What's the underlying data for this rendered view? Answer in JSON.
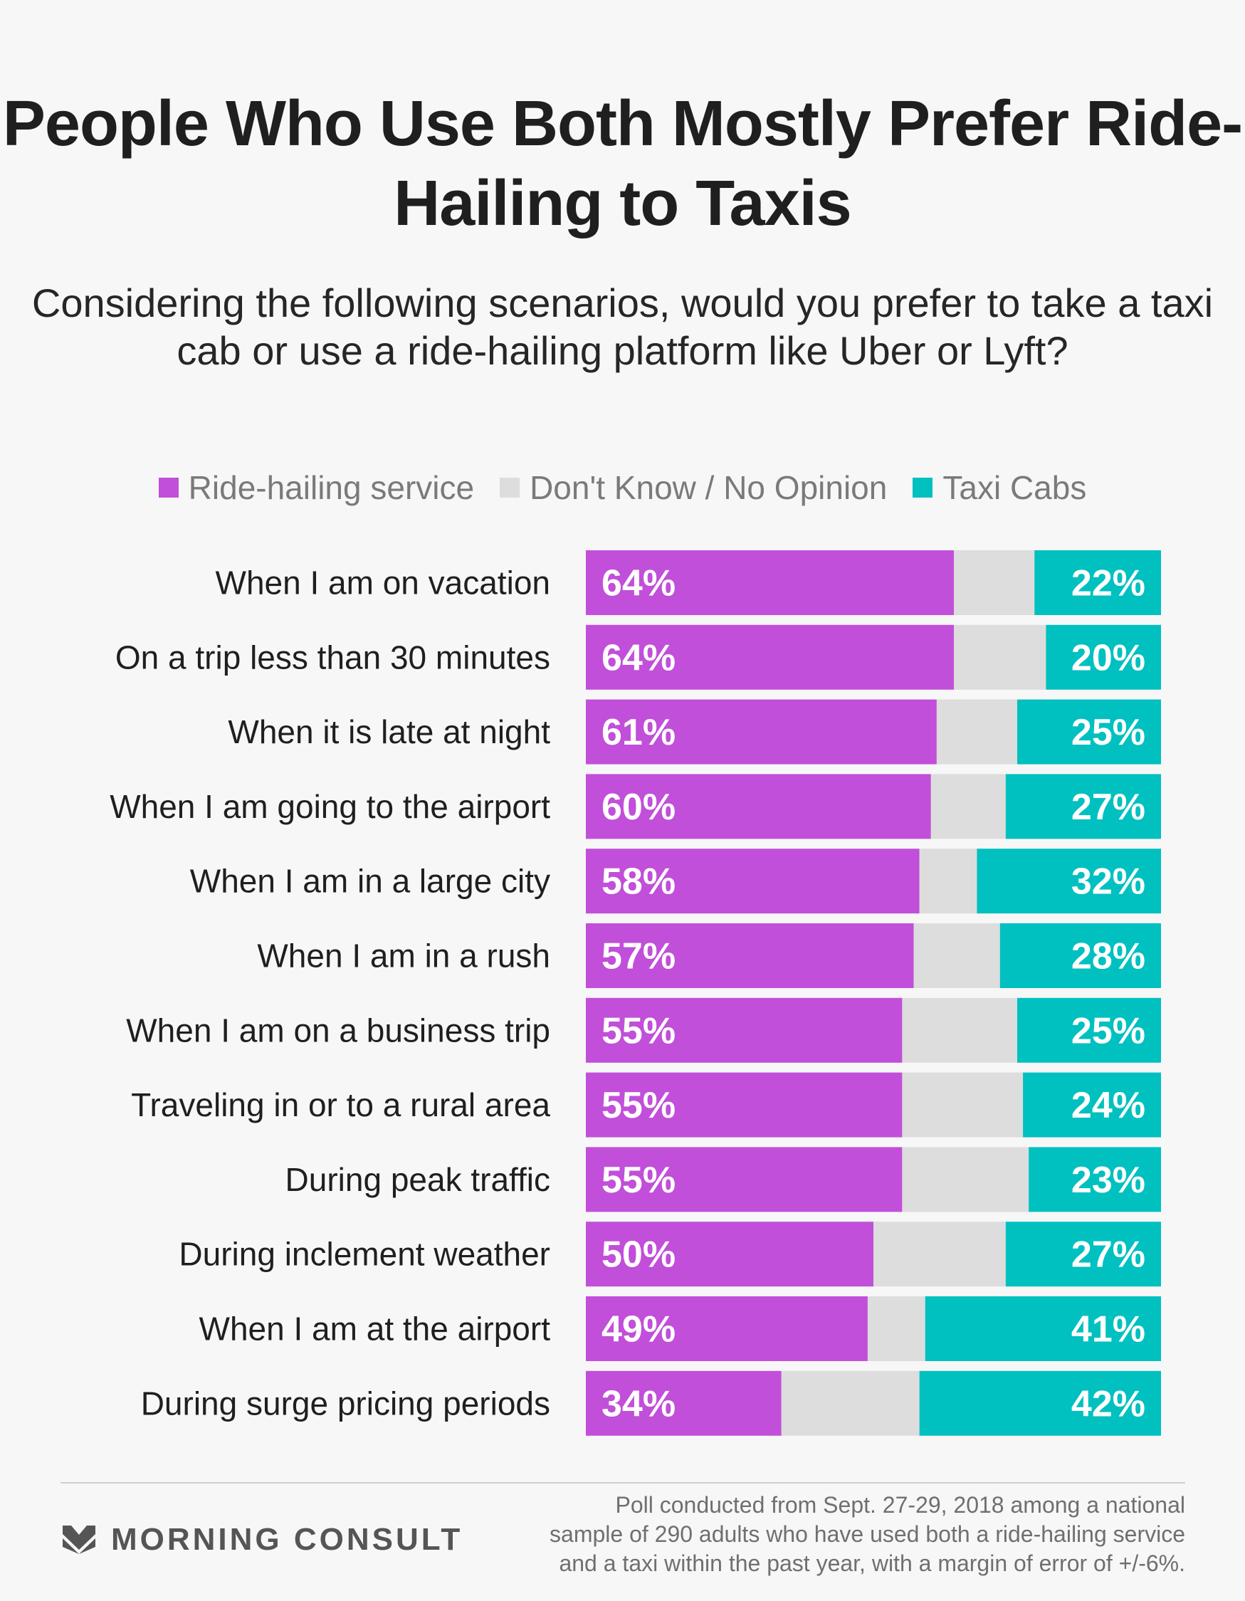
{
  "title": "People Who Use Both Mostly Prefer Ride-Hailing to Taxis",
  "subtitle": "Considering the following scenarios, would you prefer to take a taxi cab or use a ride-hailing platform like Uber or Lyft?",
  "legend": {
    "ride": "Ride-hailing service",
    "dk": "Don't Know / No Opinion",
    "taxi": "Taxi Cabs"
  },
  "colors": {
    "ride": "#c14fd9",
    "dk": "#dddddd",
    "taxi": "#00c0c0"
  },
  "chart_data": {
    "type": "bar",
    "orientation": "horizontal",
    "stacked": true,
    "categories": [
      "When I am on vacation",
      "On a trip less than 30 minutes",
      "When it is late at night",
      "When I am going to the airport",
      "When I am in a large city",
      "When I am in a rush",
      "When I am on a business trip",
      "Traveling in or to a rural area",
      "During peak traffic",
      "During inclement weather",
      "When I am at the airport",
      "During surge pricing periods"
    ],
    "series": [
      {
        "name": "Ride-hailing service",
        "values": [
          64,
          64,
          61,
          60,
          58,
          57,
          55,
          55,
          55,
          50,
          49,
          34
        ]
      },
      {
        "name": "Don't Know / No Opinion",
        "values": [
          14,
          16,
          14,
          13,
          10,
          15,
          20,
          21,
          22,
          23,
          10,
          24
        ]
      },
      {
        "name": "Taxi Cabs",
        "values": [
          22,
          20,
          25,
          27,
          32,
          28,
          25,
          24,
          23,
          27,
          41,
          42
        ]
      }
    ],
    "unit": "%"
  },
  "footer": {
    "brand": "MORNING CONSULT",
    "note_lines": [
      "Poll conducted from Sept. 27-29, 2018 among a national",
      "sample of 290 adults who have used both a ride-hailing service",
      "and a taxi within the past year, with a margin of error of +/-6%."
    ]
  }
}
